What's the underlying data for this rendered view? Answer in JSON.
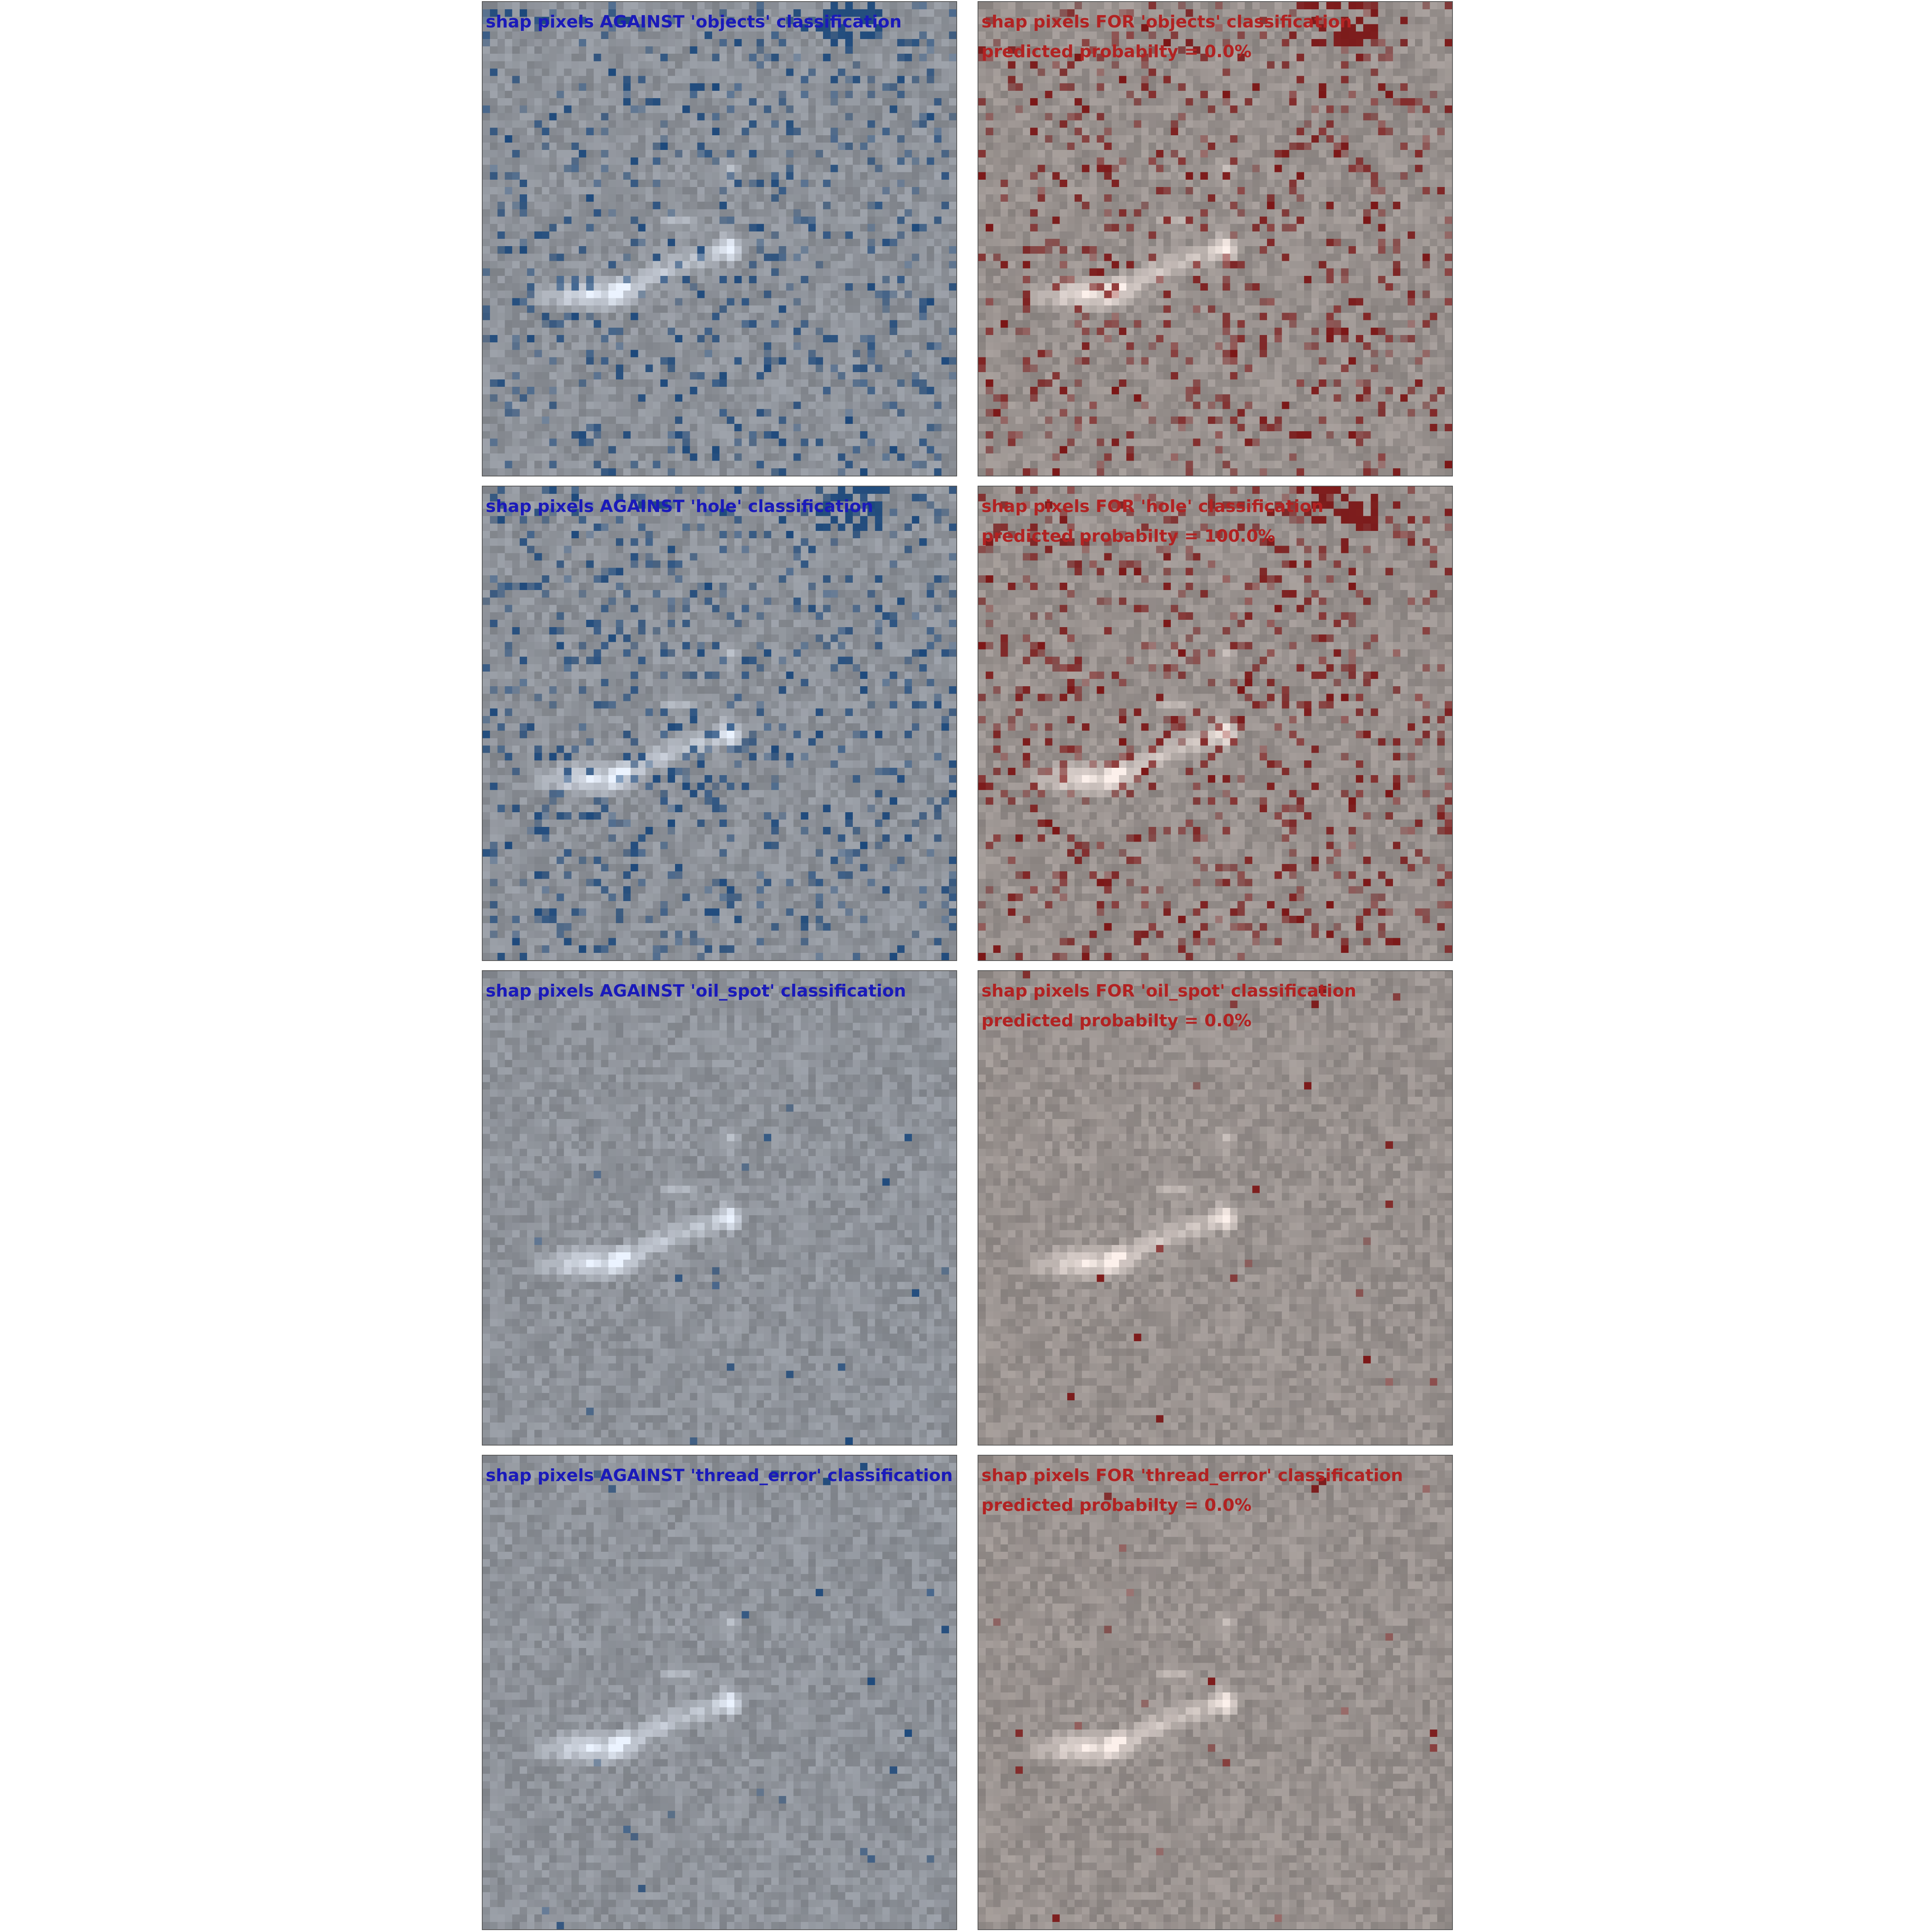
{
  "colors": {
    "against_text": "#1a1aba",
    "for_text": "#b22222",
    "against_overlay": "#17457a",
    "for_overlay": "#7a1010"
  },
  "rows": [
    {
      "class": "objects",
      "against_caption": "shap pixels AGAINST 'objects' classification",
      "for_caption": "shap pixels FOR 'objects' classification",
      "probability": "predicted probabilty = 0.0%",
      "overlay_intensity": 0.9
    },
    {
      "class": "hole",
      "against_caption": "shap pixels AGAINST 'hole' classification",
      "for_caption": "shap pixels FOR 'hole' classification",
      "probability": "predicted probabilty = 100.0%",
      "overlay_intensity": 1.0
    },
    {
      "class": "oil_spot",
      "against_caption": "shap pixels AGAINST 'oil_spot' classification",
      "for_caption": "shap pixels FOR 'oil_spot' classification",
      "probability": "predicted probabilty = 0.0%",
      "overlay_intensity": 0.02
    },
    {
      "class": "thread_error",
      "against_caption": "shap pixels AGAINST 'thread_error' classification",
      "for_caption": "shap pixels FOR 'thread_error' classification",
      "probability": "predicted probabilty = 0.0%",
      "overlay_intensity": 0.03
    }
  ]
}
